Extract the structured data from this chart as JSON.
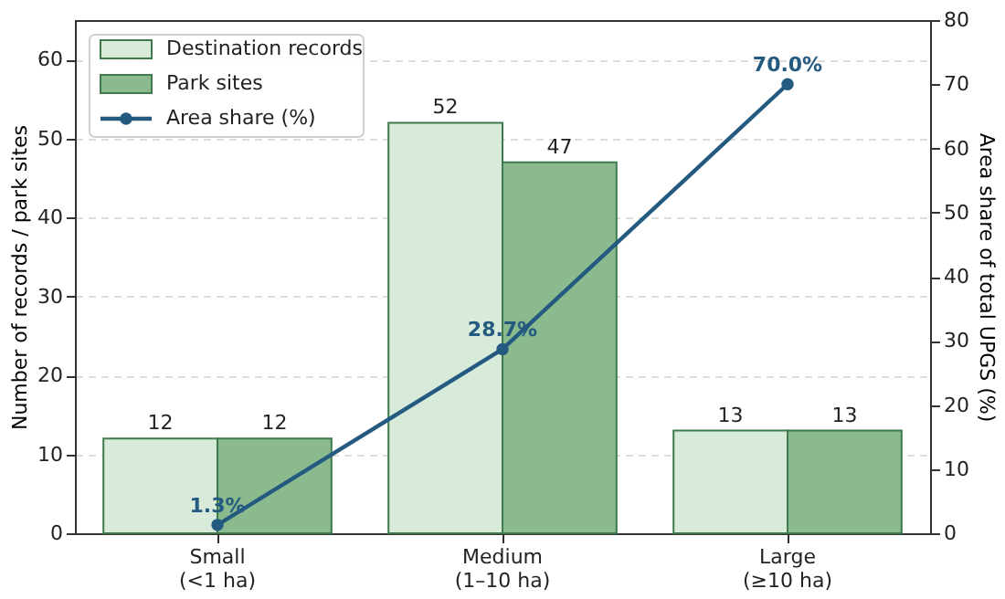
{
  "chart_data": {
    "type": "bar",
    "categories": [
      "Small\n(<1 ha)",
      "Medium\n(1–10 ha)",
      "Large\n(≥10 ha)"
    ],
    "ylabel": "Number of records / park sites",
    "y2label": "Area share of total UPGS (%)",
    "ylim": [
      0,
      65
    ],
    "yticks": [
      0,
      10,
      20,
      30,
      40,
      50,
      60
    ],
    "y2lim": [
      0,
      80
    ],
    "y2ticks": [
      0,
      10,
      20,
      30,
      40,
      50,
      60,
      70,
      80
    ],
    "grid": "y",
    "legend": "top left",
    "data_labels": true,
    "series": [
      {
        "name": "Destination records",
        "color": "#d8ebdb",
        "values": [
          12,
          52,
          13
        ]
      },
      {
        "name": "Park sites",
        "color": "#8aba8d",
        "values": [
          12,
          47,
          13
        ]
      },
      {
        "name": "Area share (%)",
        "type": "line",
        "axis": "y2",
        "marker": "circle",
        "color": "#245a80",
        "values": [
          1.3,
          28.7,
          70.0
        ],
        "value_labels": [
          "1.3%",
          "28.7%",
          "70.0%"
        ]
      }
    ]
  }
}
